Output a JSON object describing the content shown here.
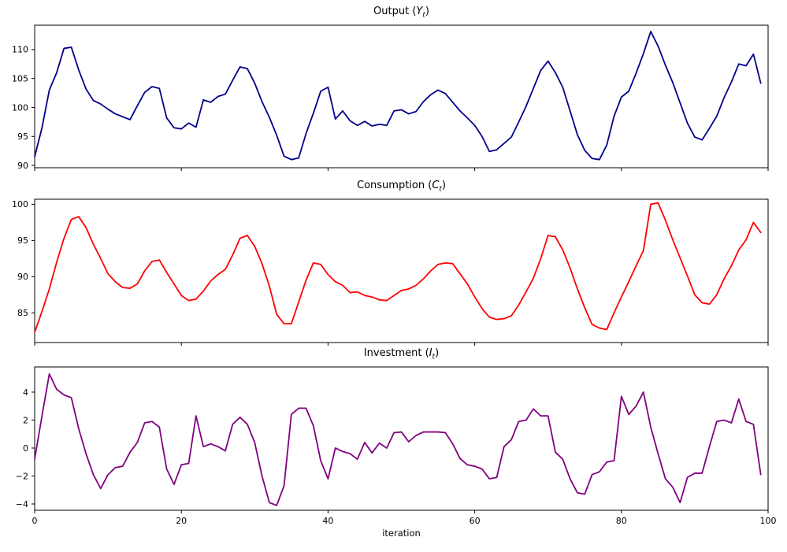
{
  "figure": {
    "background": "#ffffff",
    "xlabel": "iteration"
  },
  "chart_data": [
    {
      "type": "line",
      "panel": "top",
      "title": {
        "prefix": "Output (",
        "var": "Y",
        "sub": "t",
        "suffix": ")"
      },
      "series_name": "Output (Y_t)",
      "color": "#00008b",
      "x_start": 0,
      "x_step": 1,
      "values": [
        91.5,
        96.5,
        103.0,
        106.0,
        110.2,
        110.4,
        106.5,
        103.2,
        101.2,
        100.6,
        99.7,
        98.9,
        98.4,
        97.9,
        100.3,
        102.6,
        103.6,
        103.3,
        98.2,
        96.5,
        96.3,
        97.3,
        96.6,
        101.3,
        100.9,
        101.9,
        102.3,
        104.7,
        107.0,
        106.7,
        104.2,
        101.0,
        98.3,
        95.2,
        91.6,
        91.0,
        91.3,
        95.5,
        99.0,
        102.8,
        103.5,
        98.0,
        99.4,
        97.7,
        96.9,
        97.6,
        96.8,
        97.1,
        96.9,
        99.4,
        99.6,
        98.9,
        99.3,
        101.0,
        102.2,
        103.0,
        102.4,
        100.9,
        99.4,
        98.2,
        96.9,
        95.0,
        92.4,
        92.7,
        93.8,
        94.9,
        97.5,
        100.2,
        103.3,
        106.4,
        108.0,
        106.0,
        103.5,
        99.4,
        95.3,
        92.6,
        91.2,
        91.0,
        93.5,
        98.5,
        101.8,
        102.8,
        105.9,
        109.3,
        113.1,
        110.6,
        107.3,
        104.3,
        100.8,
        97.3,
        94.9,
        94.4,
        96.4,
        98.5,
        101.7,
        104.4,
        107.5,
        107.2,
        109.2,
        104.2
      ],
      "xlim": [
        0,
        100
      ],
      "ylim": [
        89.6,
        114.2
      ],
      "yticks": [
        90,
        95,
        100,
        105,
        110
      ],
      "xticks": [
        0,
        20,
        40,
        60,
        80,
        100
      ],
      "show_xtick_labels": false,
      "grid": false,
      "legend": "none"
    },
    {
      "type": "line",
      "panel": "middle",
      "title": {
        "prefix": "Consumption (",
        "var": "C",
        "sub": "t",
        "suffix": ")"
      },
      "series_name": "Consumption (C_t)",
      "color": "#ff0000",
      "x_start": 0,
      "x_step": 1,
      "values": [
        82.3,
        85.2,
        88.3,
        92.0,
        95.3,
        97.9,
        98.3,
        96.8,
        94.5,
        92.5,
        90.4,
        89.3,
        88.5,
        88.4,
        89.0,
        90.8,
        92.1,
        92.3,
        90.6,
        89.0,
        87.4,
        86.7,
        86.9,
        88.0,
        89.4,
        90.3,
        91.0,
        93.0,
        95.3,
        95.7,
        94.2,
        91.8,
        88.7,
        84.8,
        83.5,
        83.5,
        86.5,
        89.5,
        91.9,
        91.7,
        90.3,
        89.3,
        88.8,
        87.8,
        87.9,
        87.4,
        87.2,
        86.8,
        86.7,
        87.4,
        88.1,
        88.3,
        88.8,
        89.7,
        90.8,
        91.7,
        91.9,
        91.8,
        90.4,
        89.0,
        87.2,
        85.6,
        84.4,
        84.1,
        84.2,
        84.6,
        86.1,
        87.9,
        89.8,
        92.5,
        95.7,
        95.5,
        93.7,
        91.2,
        88.3,
        85.7,
        83.4,
        82.9,
        82.7,
        85.0,
        87.2,
        89.3,
        91.5,
        93.6,
        100.0,
        100.2,
        97.8,
        95.1,
        92.6,
        90.1,
        87.5,
        86.4,
        86.2,
        87.5,
        89.7,
        91.5,
        93.7,
        95.1,
        97.5,
        96.1
      ],
      "xlim": [
        0,
        100
      ],
      "ylim": [
        80.9,
        100.7
      ],
      "yticks": [
        85,
        90,
        95,
        100
      ],
      "xticks": [
        0,
        20,
        40,
        60,
        80,
        100
      ],
      "show_xtick_labels": false,
      "grid": false,
      "legend": "none"
    },
    {
      "type": "line",
      "panel": "bottom",
      "title": {
        "prefix": "Investment (",
        "var": "I",
        "sub": "t",
        "suffix": ")"
      },
      "series_name": "Investment (I_t)",
      "color": "#800080",
      "x_start": 0,
      "x_step": 1,
      "values": [
        -0.8,
        2.3,
        5.3,
        4.2,
        3.8,
        3.6,
        1.4,
        -0.4,
        -1.9,
        -2.9,
        -1.9,
        -1.4,
        -1.3,
        -0.3,
        0.4,
        1.8,
        1.9,
        1.5,
        -1.5,
        -2.6,
        -1.2,
        -1.1,
        2.3,
        0.1,
        0.3,
        0.1,
        -0.2,
        1.7,
        2.2,
        1.7,
        0.4,
        -2.0,
        -3.9,
        -4.1,
        -2.7,
        2.4,
        2.85,
        2.85,
        1.6,
        -0.9,
        -2.2,
        0.0,
        -0.25,
        -0.4,
        -0.8,
        0.4,
        -0.35,
        0.35,
        0.0,
        1.1,
        1.15,
        0.45,
        0.9,
        1.15,
        1.15,
        1.15,
        1.1,
        0.3,
        -0.75,
        -1.2,
        -1.3,
        -1.5,
        -2.2,
        -2.1,
        0.1,
        0.6,
        1.9,
        2.0,
        2.8,
        2.3,
        2.3,
        -0.3,
        -0.8,
        -2.2,
        -3.2,
        -3.3,
        -1.9,
        -1.7,
        -1.0,
        -0.9,
        3.7,
        2.4,
        3.0,
        4.0,
        1.5,
        -0.4,
        -2.2,
        -2.8,
        -3.9,
        -2.1,
        -1.8,
        -1.8,
        0.1,
        1.9,
        2.0,
        1.8,
        3.5,
        1.9,
        1.7,
        -1.9
      ],
      "xlim": [
        0,
        100
      ],
      "ylim": [
        -4.45,
        5.8
      ],
      "yticks": [
        -4,
        -2,
        0,
        2,
        4
      ],
      "xticks": [
        0,
        20,
        40,
        60,
        80,
        100
      ],
      "show_xtick_labels": true,
      "xlabel": "iteration",
      "grid": false,
      "legend": "none"
    }
  ]
}
